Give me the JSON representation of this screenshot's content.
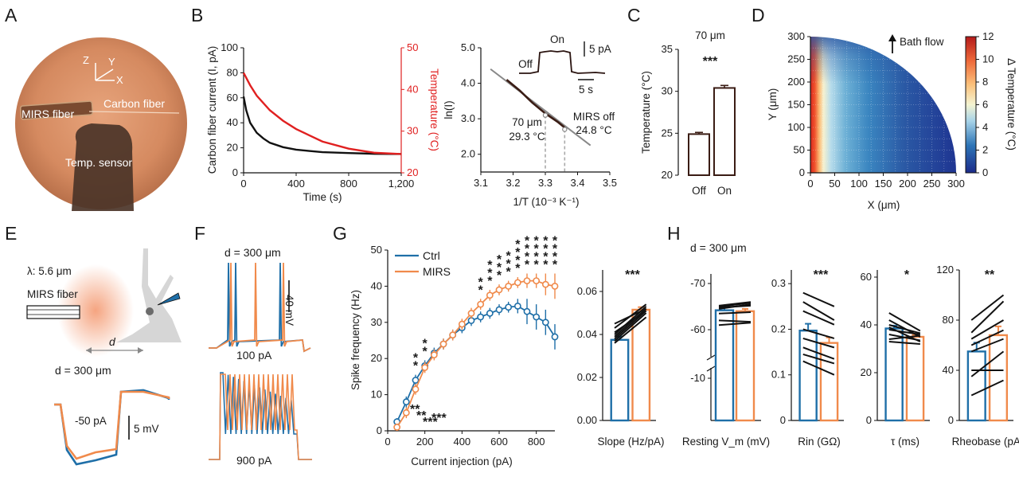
{
  "colors": {
    "ctrl": "#1f6fa8",
    "mirs": "#f08a4b",
    "temp_curve": "#e02020",
    "current_curve": "#111111",
    "fit_line": "#888888",
    "ctrl_fill": "#ffffff",
    "mirs_fill": "#ffffff"
  },
  "panels": {
    "A": "A",
    "B": "B",
    "C": "C",
    "D": "D",
    "E": "E",
    "F": "F",
    "G": "G",
    "H": "H"
  },
  "photo_a": {
    "labels": {
      "mirs": "MIRS fiber",
      "carbon": "Carbon fiber",
      "sensor": "Temp. sensor",
      "z": "Z",
      "y": "Y",
      "x": "X"
    }
  },
  "chart_data": [
    {
      "id": "B-left",
      "type": "line",
      "xlabel": "Time (s)",
      "ylabel": "Carbon fiber current (I, pA)",
      "ylabel2": "Temperature (°C)",
      "xlim": [
        0,
        1200
      ],
      "ylim": [
        0,
        100
      ],
      "ylim2": [
        20,
        50
      ],
      "xticks": [
        "0",
        "400",
        "800",
        "1,200"
      ],
      "yticks": [
        "0",
        "20",
        "40",
        "60",
        "80",
        "100"
      ],
      "yticks2": [
        "20",
        "30",
        "40",
        "50"
      ],
      "series": [
        {
          "x": [
            0,
            20,
            50,
            100,
            150,
            200,
            300,
            400,
            500,
            600,
            800,
            1000,
            1200
          ],
          "y": [
            61,
            50,
            40,
            32,
            27.5,
            24,
            20.5,
            18.5,
            17.5,
            16.5,
            15.8,
            15.2,
            15
          ]
        },
        {
          "x": [
            0,
            50,
            100,
            200,
            300,
            400,
            500,
            600,
            800,
            1000,
            1200
          ],
          "y": [
            44,
            41,
            38.5,
            35,
            32.5,
            30.5,
            29,
            27.5,
            25.8,
            24.8,
            24.5
          ]
        }
      ]
    },
    {
      "id": "B-right",
      "type": "scatter",
      "xlabel": "1/T (10⁻³ K⁻¹)",
      "ylabel": "ln(I)",
      "xlim": [
        3.1,
        3.5
      ],
      "ylim": [
        1.5,
        5.0
      ],
      "xticks": [
        "3.1",
        "3.2",
        "3.3",
        "3.4",
        "3.5"
      ],
      "yticks": [
        "2.0",
        "3.0",
        "4.0",
        "5.0"
      ],
      "fit_line": {
        "x": [
          3.13,
          3.44
        ],
        "y": [
          4.4,
          2.25
        ]
      },
      "points": {
        "x": [
          3.18,
          3.22,
          3.26,
          3.3,
          3.34,
          3.36
        ],
        "y": [
          4.1,
          3.8,
          3.45,
          3.15,
          2.9,
          2.75
        ]
      },
      "markers": [
        {
          "x": 3.3,
          "y": 3.1,
          "label1": "70 μm",
          "label2": "29.3 °C"
        },
        {
          "x": 3.36,
          "y": 2.7,
          "label1": "MIRS off",
          "label2": "24.8 °C"
        }
      ],
      "inset": {
        "on": "On",
        "off": "Off",
        "scale_y": "5 pA",
        "scale_x": "5 s"
      }
    },
    {
      "id": "C",
      "type": "bar",
      "title": "70 μm",
      "sig": "***",
      "ylabel": "Temperature (°C)",
      "categories": [
        "Off",
        "On"
      ],
      "values": [
        24.9,
        30.4
      ],
      "errors": [
        0.2,
        0.3
      ],
      "ylim": [
        20,
        35
      ],
      "yticks": [
        "20",
        "25",
        "30",
        "35"
      ]
    },
    {
      "id": "D",
      "type": "heatmap",
      "xlabel": "X (μm)",
      "ylabel": "Y (μm)",
      "xlim": [
        0,
        300
      ],
      "ylim": [
        0,
        300
      ],
      "xticks": [
        "0",
        "50",
        "100",
        "150",
        "200",
        "250",
        "300"
      ],
      "yticks": [
        "0",
        "50",
        "100",
        "150",
        "200",
        "250",
        "300"
      ],
      "colorbar": {
        "label": "Δ Temperature (°C)",
        "range": [
          0,
          12
        ],
        "ticks": [
          "0",
          "2",
          "4",
          "6",
          "8",
          "10",
          "12"
        ]
      },
      "annotation": "Bath flow"
    },
    {
      "id": "G-left",
      "type": "line",
      "xlabel": "Current injection (pA)",
      "ylabel": "Spike frequency (Hz)",
      "xlim": [
        0,
        900
      ],
      "ylim": [
        0,
        50
      ],
      "xticks": [
        "0",
        "200",
        "400",
        "600",
        "800"
      ],
      "yticks": [
        "0",
        "10",
        "20",
        "30",
        "40",
        "50"
      ],
      "x": [
        50,
        100,
        150,
        200,
        250,
        300,
        350,
        400,
        450,
        500,
        550,
        600,
        650,
        700,
        750,
        800,
        850,
        900
      ],
      "series": [
        {
          "name": "Ctrl",
          "values": [
            2.5,
            8,
            14,
            18,
            21.5,
            24,
            26.5,
            28.5,
            30.5,
            31.5,
            32.5,
            33.5,
            34.2,
            34.5,
            33,
            31.5,
            30,
            26
          ],
          "errors": [
            1,
            1.5,
            1.5,
            1.5,
            1.5,
            1.5,
            1.5,
            1.5,
            1.5,
            1.5,
            1.5,
            1.5,
            1.5,
            2,
            3.5,
            3.5,
            3.5,
            3.5
          ]
        },
        {
          "name": "MIRS",
          "values": [
            1,
            5,
            11.5,
            17.5,
            21,
            24,
            26.5,
            29.5,
            32.5,
            35,
            37.5,
            39,
            40,
            41,
            41.5,
            41.5,
            40.5,
            40
          ],
          "errors": [
            1,
            1.5,
            1.5,
            1.5,
            1.5,
            1.5,
            1.5,
            1.5,
            1.5,
            1.5,
            1.5,
            1.5,
            1.5,
            1.5,
            2,
            2,
            3,
            3.5
          ]
        }
      ],
      "sig_top": [
        {
          "x": 150,
          "n": 2
        },
        {
          "x": 200,
          "n": 2
        },
        {
          "x": 500,
          "n": 2
        },
        {
          "x": 550,
          "n": 3
        },
        {
          "x": 600,
          "n": 3
        },
        {
          "x": 650,
          "n": 3
        },
        {
          "x": 700,
          "n": 4
        },
        {
          "x": 750,
          "n": 4
        },
        {
          "x": 800,
          "n": 4
        },
        {
          "x": 850,
          "n": 4
        },
        {
          "x": 900,
          "n": 4
        }
      ],
      "sig_bottom": [
        "**",
        "**",
        "***",
        "***"
      ]
    },
    {
      "id": "G-right",
      "type": "bar",
      "xlabel": "Slope (Hz/pA)",
      "sig": "***",
      "categories": [
        "Ctrl",
        "MIRS"
      ],
      "values": [
        0.0375,
        0.0515
      ],
      "errors": [
        0.0015,
        0.0012
      ],
      "ylim": [
        0,
        0.07
      ],
      "yticks": [
        "0.00",
        "0.02",
        "0.04",
        "0.06"
      ],
      "pairs": [
        [
          0.036,
          0.048
        ],
        [
          0.037,
          0.05
        ],
        [
          0.038,
          0.051
        ],
        [
          0.039,
          0.052
        ],
        [
          0.04,
          0.053
        ],
        [
          0.041,
          0.051
        ],
        [
          0.043,
          0.054
        ],
        [
          0.045,
          0.052
        ]
      ]
    },
    {
      "id": "H-resting",
      "type": "bar",
      "xlabel": "Resting V_m (mV)",
      "categories": [
        "Ctrl",
        "MIRS"
      ],
      "values": [
        -64.2,
        -64
      ],
      "errors": [
        0.6,
        0.5
      ],
      "yticks": [
        "-10",
        "-60",
        "-70"
      ],
      "pairs": [
        [
          -64.5,
          -65.5
        ],
        [
          -65,
          -65.8
        ],
        [
          -65.2,
          -66
        ],
        [
          -64.8,
          -65.2
        ],
        [
          -63.5,
          -63.8
        ],
        [
          -62,
          -61.7
        ],
        [
          -61,
          -61.5
        ]
      ]
    },
    {
      "id": "H-rin",
      "type": "bar",
      "xlabel": "Rin (GΩ)",
      "sig": "***",
      "categories": [
        "Ctrl",
        "MIRS"
      ],
      "values": [
        0.197,
        0.17
      ],
      "errors": [
        0.015,
        0.012
      ],
      "ylim": [
        0,
        0.33
      ],
      "yticks": [
        "0",
        "0.1",
        "0.2",
        "0.3"
      ],
      "pairs": [
        [
          0.28,
          0.25
        ],
        [
          0.26,
          0.22
        ],
        [
          0.24,
          0.21
        ],
        [
          0.2,
          0.18
        ],
        [
          0.18,
          0.16
        ],
        [
          0.16,
          0.135
        ],
        [
          0.145,
          0.125
        ],
        [
          0.13,
          0.1
        ]
      ]
    },
    {
      "id": "H-tau",
      "type": "bar",
      "xlabel": "τ (ms)",
      "sig": "*",
      "categories": [
        "Ctrl",
        "MIRS"
      ],
      "values": [
        38.5,
        35
      ],
      "errors": [
        1.2,
        0.8
      ],
      "ylim": [
        0,
        63
      ],
      "yticks": [
        "0",
        "20",
        "40",
        "60"
      ],
      "pairs": [
        [
          45,
          37.5
        ],
        [
          42,
          35
        ],
        [
          40,
          36.5
        ],
        [
          39,
          33
        ],
        [
          38,
          36
        ],
        [
          36,
          33.5
        ],
        [
          34,
          35.5
        ],
        [
          33,
          32
        ]
      ]
    },
    {
      "id": "H-rheobase",
      "type": "bar",
      "xlabel": "Rheobase (pA)",
      "sig": "**",
      "categories": [
        "Ctrl",
        "MIRS"
      ],
      "values": [
        55,
        68
      ],
      "errors": [
        7,
        7
      ],
      "ylim": [
        0,
        120
      ],
      "yticks": [
        "0",
        "40",
        "80",
        "120"
      ],
      "pairs": [
        [
          80,
          100
        ],
        [
          70,
          95
        ],
        [
          65,
          80
        ],
        [
          60,
          72
        ],
        [
          55,
          65
        ],
        [
          40,
          40
        ],
        [
          35,
          55
        ],
        [
          20,
          32
        ]
      ]
    }
  ],
  "panel_e": {
    "lambda": "λ: 5.6 μm",
    "fiber": "MIRS fiber",
    "d": "d",
    "distance": "d = 300 μm",
    "stim": "-50 pA",
    "scale": "5 mV"
  },
  "panel_f": {
    "distance": "d = 300 μm",
    "stim_top": "100 pA",
    "stim_bottom": "900 pA",
    "scale": "40 mV"
  },
  "legend_g": {
    "ctrl": "Ctrl",
    "mirs": "MIRS"
  },
  "panel_h": {
    "distance": "d = 300 μm"
  }
}
